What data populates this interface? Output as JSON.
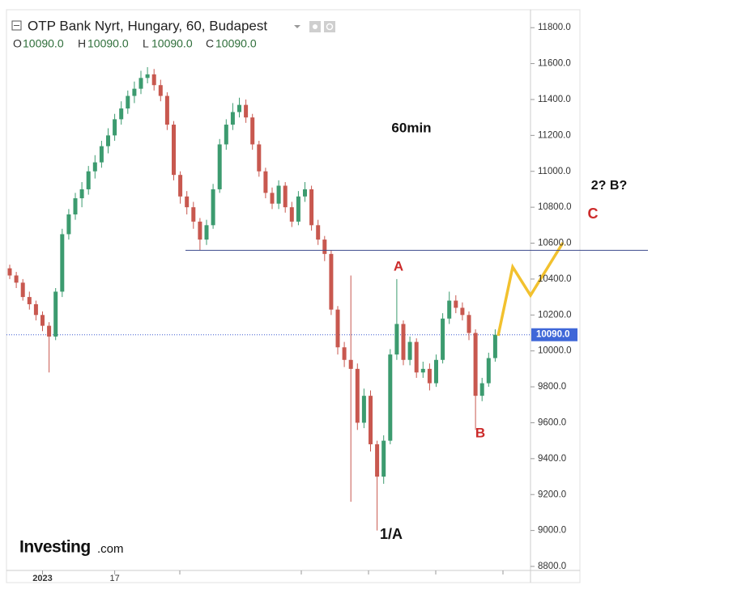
{
  "chart_data": {
    "type": "candlestick",
    "title": "OTP Bank Nyrt, Hungary, 60, Budapest",
    "ohlc_legend": [
      {
        "key": "O",
        "value": "10090.0"
      },
      {
        "key": "H",
        "value": "10090.0"
      },
      {
        "key": "L",
        "value": "10090.0"
      },
      {
        "key": "C",
        "value": "10090.0"
      }
    ],
    "categories": [
      null,
      null,
      null,
      null,
      null,
      "2023",
      null,
      null,
      null,
      null,
      null,
      null,
      null,
      null,
      null,
      null,
      "17",
      null,
      null,
      null,
      null,
      null,
      null,
      null,
      null,
      null,
      null,
      null,
      null,
      null,
      null,
      null,
      null,
      null,
      null,
      null,
      null,
      null,
      null,
      null,
      null,
      null,
      null,
      null,
      null,
      null,
      null,
      null,
      null,
      null,
      null,
      null,
      null,
      null,
      null,
      null,
      null,
      null,
      null,
      null,
      null,
      null,
      null,
      null,
      null,
      null,
      null,
      null,
      null,
      null,
      null,
      null,
      null,
      null,
      null
    ],
    "open": [
      10460,
      10420,
      10380,
      10300,
      10260,
      10200,
      10140,
      10080,
      10330,
      10650,
      10760,
      10850,
      10900,
      11000,
      11050,
      11140,
      11200,
      11290,
      11350,
      11420,
      11460,
      11520,
      11540,
      11480,
      11420,
      11260,
      10980,
      10860,
      10800,
      10720,
      10620,
      10700,
      10900,
      11150,
      11260,
      11330,
      11370,
      11300,
      11150,
      11000,
      10880,
      10820,
      10920,
      10800,
      10720,
      10860,
      10900,
      10700,
      10620,
      10540,
      10230,
      10020,
      9950,
      9900,
      9600,
      9750,
      9480,
      9300,
      9500,
      9980,
      10150,
      9950,
      10050,
      9880,
      9900,
      9820,
      9950,
      10180,
      10280,
      10240,
      10200,
      10100,
      9750,
      9820,
      9960
    ],
    "high": [
      10480,
      10440,
      10400,
      10330,
      10280,
      10220,
      10160,
      10350,
      10680,
      10790,
      10880,
      10940,
      11030,
      11090,
      11170,
      11240,
      11320,
      11390,
      11450,
      11500,
      11560,
      11580,
      11570,
      11510,
      11440,
      11280,
      11000,
      10890,
      10830,
      10740,
      10730,
      10930,
      11180,
      11290,
      11380,
      11410,
      11400,
      11320,
      11170,
      11020,
      10910,
      10950,
      10940,
      10830,
      10890,
      10940,
      10920,
      10730,
      10640,
      10560,
      10250,
      10050,
      10420,
      9930,
      9790,
      9780,
      9500,
      9530,
      10010,
      10400,
      10170,
      10080,
      10070,
      9940,
      9930,
      9980,
      10210,
      10330,
      10310,
      10270,
      10220,
      10120,
      9850,
      9990,
      10120
    ],
    "low": [
      10400,
      10350,
      10280,
      10230,
      10170,
      10110,
      9880,
      10060,
      10300,
      10620,
      10730,
      10800,
      10870,
      10960,
      11020,
      11100,
      11170,
      11260,
      11320,
      11380,
      11430,
      11490,
      11450,
      11390,
      11230,
      10950,
      10820,
      10760,
      10680,
      10560,
      10590,
      10680,
      10880,
      11120,
      11230,
      11300,
      11270,
      11120,
      10970,
      10850,
      10790,
      10790,
      10770,
      10690,
      10700,
      10830,
      10670,
      10590,
      10500,
      10200,
      9980,
      9910,
      9160,
      9560,
      9570,
      9440,
      9000,
      9260,
      9480,
      9950,
      9920,
      9920,
      9850,
      9850,
      9780,
      9800,
      9930,
      10150,
      10210,
      10170,
      10060,
      9560,
      9720,
      9800,
      9940
    ],
    "close": [
      10420,
      10380,
      10300,
      10260,
      10200,
      10140,
      10080,
      10330,
      10650,
      10760,
      10850,
      10900,
      11000,
      11050,
      11140,
      11200,
      11290,
      11350,
      11420,
      11460,
      11520,
      11540,
      11480,
      11420,
      11260,
      10980,
      10860,
      10800,
      10720,
      10620,
      10700,
      10900,
      11150,
      11260,
      11330,
      11370,
      11300,
      11150,
      11000,
      10880,
      10820,
      10920,
      10800,
      10720,
      10860,
      10900,
      10700,
      10620,
      10540,
      10230,
      10020,
      9950,
      9900,
      9600,
      9750,
      9480,
      9300,
      9500,
      9980,
      10150,
      9950,
      10050,
      9880,
      9900,
      9820,
      9950,
      10180,
      10280,
      10240,
      10200,
      10100,
      9750,
      9820,
      9960,
      10090
    ],
    "up_color": "#3c9b6f",
    "down_color": "#c8584f",
    "ylim": [
      8800,
      11900
    ],
    "yticks": [
      {
        "value": 8800,
        "label": "8800.0"
      },
      {
        "value": 9000,
        "label": "9000.0"
      },
      {
        "value": 9200,
        "label": "9200.0"
      },
      {
        "value": 9400,
        "label": "9400.0"
      },
      {
        "value": 9600,
        "label": "9600.0"
      },
      {
        "value": 9800,
        "label": "9800.0"
      },
      {
        "value": 10000,
        "label": "10000.0"
      },
      {
        "value": 10200,
        "label": "10200.0"
      },
      {
        "value": 10400,
        "label": "10400.0"
      },
      {
        "value": 10600,
        "label": "10600.0"
      },
      {
        "value": 10800,
        "label": "10800.0"
      },
      {
        "value": 11000,
        "label": "11000.0"
      },
      {
        "value": 11200,
        "label": "11200.0"
      },
      {
        "value": 11400,
        "label": "11400.0"
      },
      {
        "value": 11600,
        "label": "11600.0"
      },
      {
        "value": 11800,
        "label": "11800.0"
      }
    ],
    "last_price": {
      "value": 10090,
      "label": "10090.0"
    },
    "level_line": 10560,
    "annotations": [
      "60min",
      "2? B?",
      "C",
      "A",
      "B",
      "1/A"
    ],
    "logo": "Investing",
    "logo_suffix": ".com"
  }
}
